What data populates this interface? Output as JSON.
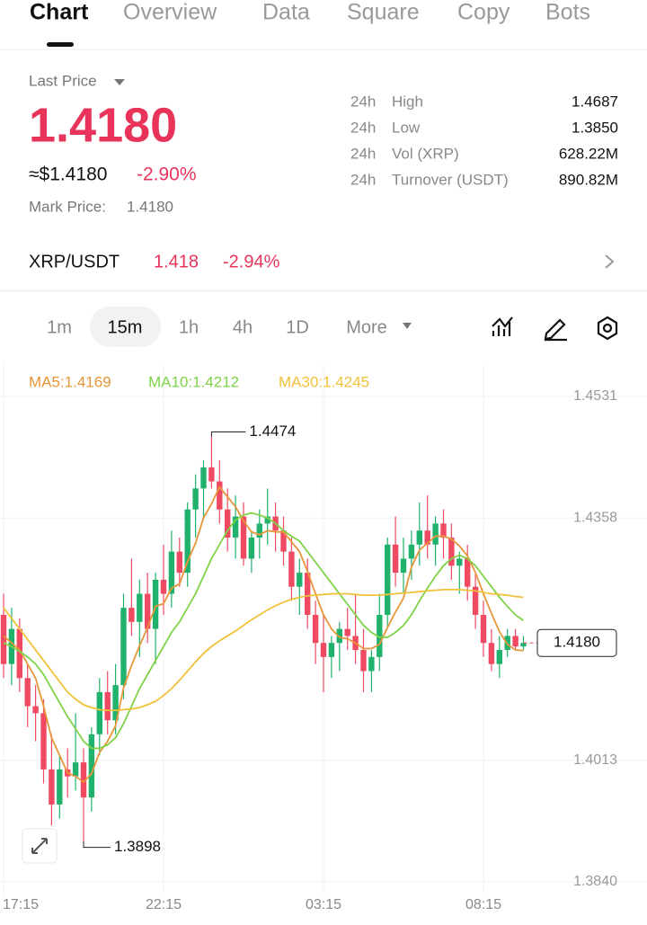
{
  "tabs": [
    "Chart",
    "Overview",
    "Data",
    "Square",
    "Copy",
    "Bots"
  ],
  "ticker": {
    "last_price_label": "Last Price",
    "last_price": "1.4180",
    "usd_price": "≈$1.4180",
    "change": "-2.90%",
    "mark_price_label": "Mark Price:",
    "mark_price": "1.4180",
    "stats": [
      [
        "24h",
        "High",
        "1.4687"
      ],
      [
        "24h",
        "Low",
        "1.3850"
      ],
      [
        "24h",
        "Vol (XRP)",
        "628.22M"
      ],
      [
        "24h",
        "Turnover (USDT)",
        "890.82M"
      ]
    ]
  },
  "pair": {
    "name": "XRP/USDT",
    "price": "1.418",
    "change": "-2.94%"
  },
  "intervals": [
    "1m",
    "15m",
    "1h",
    "4h",
    "1D",
    "More"
  ],
  "chart_data": {
    "type": "candlestick",
    "up_color": "#20b26c",
    "down_color": "#ef4a62",
    "ylim": [
      1.3822,
      1.4577
    ],
    "yticks": [
      1.4531,
      1.4358,
      1.4013,
      {
        "value": 1.384,
        "label": "1.3840"
      }
    ],
    "categories": [
      "17:15",
      null,
      null,
      null,
      null,
      null,
      null,
      null,
      null,
      null,
      null,
      null,
      null,
      null,
      null,
      null,
      null,
      null,
      null,
      null,
      "22:15",
      null,
      null,
      null,
      null,
      null,
      null,
      null,
      null,
      null,
      null,
      null,
      null,
      null,
      null,
      null,
      null,
      null,
      null,
      null,
      "03:15",
      null,
      null,
      null,
      null,
      null,
      null,
      null,
      null,
      null,
      null,
      null,
      null,
      null,
      null,
      null,
      null,
      null,
      null,
      null,
      "08:15",
      null,
      null,
      null,
      null,
      null
    ],
    "open": [
      1.422,
      1.415,
      1.42,
      1.413,
      1.409,
      1.408,
      1.4,
      1.395,
      1.4,
      1.399,
      1.401,
      1.396,
      1.405,
      1.411,
      1.407,
      1.412,
      1.423,
      1.421,
      1.425,
      1.42,
      1.427,
      1.425,
      1.431,
      1.428,
      1.437,
      1.44,
      1.443,
      1.441,
      1.437,
      1.433,
      1.436,
      1.43,
      1.433,
      1.435,
      1.436,
      1.434,
      1.431,
      1.426,
      1.428,
      1.422,
      1.418,
      1.416,
      1.418,
      1.42,
      1.419,
      1.417,
      1.414,
      1.416,
      1.422,
      1.432,
      1.428,
      1.43,
      1.432,
      1.434,
      1.432,
      1.435,
      1.433,
      1.429,
      1.43,
      1.426,
      1.422,
      1.418,
      1.415,
      1.417,
      1.419,
      1.4175
    ],
    "high": [
      1.425,
      1.423,
      1.4215,
      1.415,
      1.412,
      1.41,
      1.405,
      1.402,
      1.403,
      1.408,
      1.403,
      1.406,
      1.413,
      1.414,
      1.415,
      1.425,
      1.43,
      1.427,
      1.428,
      1.428,
      1.432,
      1.434,
      1.433,
      1.438,
      1.442,
      1.444,
      1.4474,
      1.444,
      1.44,
      1.439,
      1.438,
      1.434,
      1.437,
      1.44,
      1.438,
      1.436,
      1.433,
      1.43,
      1.43,
      1.424,
      1.422,
      1.419,
      1.421,
      1.423,
      1.425,
      1.42,
      1.417,
      1.425,
      1.433,
      1.436,
      1.433,
      1.434,
      1.438,
      1.439,
      1.436,
      1.437,
      1.435,
      1.431,
      1.432,
      1.428,
      1.424,
      1.42,
      1.419,
      1.42,
      1.42,
      1.419
    ],
    "low": [
      1.413,
      1.412,
      1.411,
      1.406,
      1.404,
      1.398,
      1.392,
      1.393,
      1.396,
      1.397,
      1.3898,
      1.394,
      1.402,
      1.405,
      1.405,
      1.41,
      1.419,
      1.416,
      1.418,
      1.415,
      1.422,
      1.423,
      1.426,
      1.426,
      1.433,
      1.436,
      1.44,
      1.435,
      1.431,
      1.43,
      1.429,
      1.428,
      1.43,
      1.432,
      1.431,
      1.429,
      1.424,
      1.422,
      1.42,
      1.415,
      1.411,
      1.413,
      1.414,
      1.417,
      1.415,
      1.411,
      1.411,
      1.414,
      1.42,
      1.426,
      1.425,
      1.427,
      1.429,
      1.43,
      1.429,
      1.43,
      1.427,
      1.425,
      1.424,
      1.42,
      1.416,
      1.414,
      1.413,
      1.416,
      1.417,
      1.417
    ],
    "close": [
      1.415,
      1.42,
      1.413,
      1.409,
      1.408,
      1.4,
      1.395,
      1.4,
      1.399,
      1.401,
      1.396,
      1.405,
      1.411,
      1.407,
      1.412,
      1.423,
      1.421,
      1.425,
      1.42,
      1.427,
      1.425,
      1.431,
      1.428,
      1.437,
      1.44,
      1.443,
      1.441,
      1.437,
      1.433,
      1.436,
      1.43,
      1.433,
      1.435,
      1.436,
      1.434,
      1.431,
      1.426,
      1.428,
      1.422,
      1.418,
      1.416,
      1.418,
      1.42,
      1.419,
      1.417,
      1.414,
      1.416,
      1.422,
      1.432,
      1.428,
      1.43,
      1.432,
      1.434,
      1.432,
      1.435,
      1.433,
      1.429,
      1.43,
      1.426,
      1.422,
      1.418,
      1.415,
      1.417,
      1.419,
      1.4175,
      1.418
    ],
    "series": [
      {
        "name": "MA5:1.4169",
        "color": "#e8963a",
        "values": [
          1.419,
          1.418,
          1.417,
          1.415,
          1.413,
          1.409,
          1.4045,
          1.402,
          1.3995,
          1.399,
          1.3982,
          1.3994,
          1.4024,
          1.404,
          1.4062,
          1.4116,
          1.4148,
          1.4176,
          1.4202,
          1.4232,
          1.4236,
          1.4258,
          1.4264,
          1.4296,
          1.4322,
          1.4358,
          1.4378,
          1.4402,
          1.4388,
          1.4374,
          1.4354,
          1.4338,
          1.4334,
          1.434,
          1.4338,
          1.4338,
          1.4324,
          1.431,
          1.4282,
          1.425,
          1.422,
          1.42,
          1.4188,
          1.4186,
          1.418,
          1.4172,
          1.4172,
          1.4178,
          1.4202,
          1.4224,
          1.4244,
          1.4288,
          1.4312,
          1.4322,
          1.4332,
          1.4332,
          1.4328,
          1.4318,
          1.4304,
          1.428,
          1.425,
          1.4222,
          1.4196,
          1.4178,
          1.417,
          1.4169
        ]
      },
      {
        "name": "MA10:1.4212",
        "color": "#7ed348",
        "values": [
          1.418,
          1.4175,
          1.4168,
          1.416,
          1.415,
          1.4135,
          1.4115,
          1.4095,
          1.4075,
          1.4058,
          1.404,
          1.403,
          1.403,
          1.4035,
          1.4045,
          1.4065,
          1.409,
          1.4115,
          1.4135,
          1.4155,
          1.4175,
          1.4195,
          1.421,
          1.423,
          1.425,
          1.4275,
          1.43,
          1.432,
          1.434,
          1.4355,
          1.4362,
          1.4365,
          1.4362,
          1.4358,
          1.435,
          1.434,
          1.4332,
          1.4325,
          1.431,
          1.4295,
          1.428,
          1.4265,
          1.425,
          1.4235,
          1.422,
          1.4205,
          1.4195,
          1.4188,
          1.4188,
          1.4195,
          1.4205,
          1.422,
          1.424,
          1.4258,
          1.4275,
          1.429,
          1.43,
          1.4305,
          1.43,
          1.429,
          1.4275,
          1.426,
          1.4245,
          1.4232,
          1.422,
          1.4212
        ]
      },
      {
        "name": "MA30:1.4245",
        "color": "#f0c23a",
        "values": [
          1.423,
          1.4215,
          1.42,
          1.4185,
          1.417,
          1.4155,
          1.414,
          1.4125,
          1.411,
          1.41,
          1.4092,
          1.4088,
          1.4085,
          1.4084,
          1.4084,
          1.4085,
          1.4086,
          1.4088,
          1.4092,
          1.4097,
          1.4105,
          1.4115,
          1.4127,
          1.414,
          1.4153,
          1.4165,
          1.4175,
          1.4183,
          1.419,
          1.4197,
          1.4205,
          1.4213,
          1.422,
          1.4227,
          1.4233,
          1.4238,
          1.4242,
          1.4245,
          1.4247,
          1.4248,
          1.4249,
          1.425,
          1.425,
          1.425,
          1.4249,
          1.4248,
          1.4248,
          1.4248,
          1.4249,
          1.425,
          1.4251,
          1.4252,
          1.4253,
          1.4254,
          1.4255,
          1.4256,
          1.4256,
          1.4256,
          1.4255,
          1.4254,
          1.4252,
          1.425,
          1.4249,
          1.4248,
          1.4246,
          1.4245
        ]
      }
    ],
    "price_tag": {
      "value": 1.418,
      "label": "1.4180"
    }
  }
}
